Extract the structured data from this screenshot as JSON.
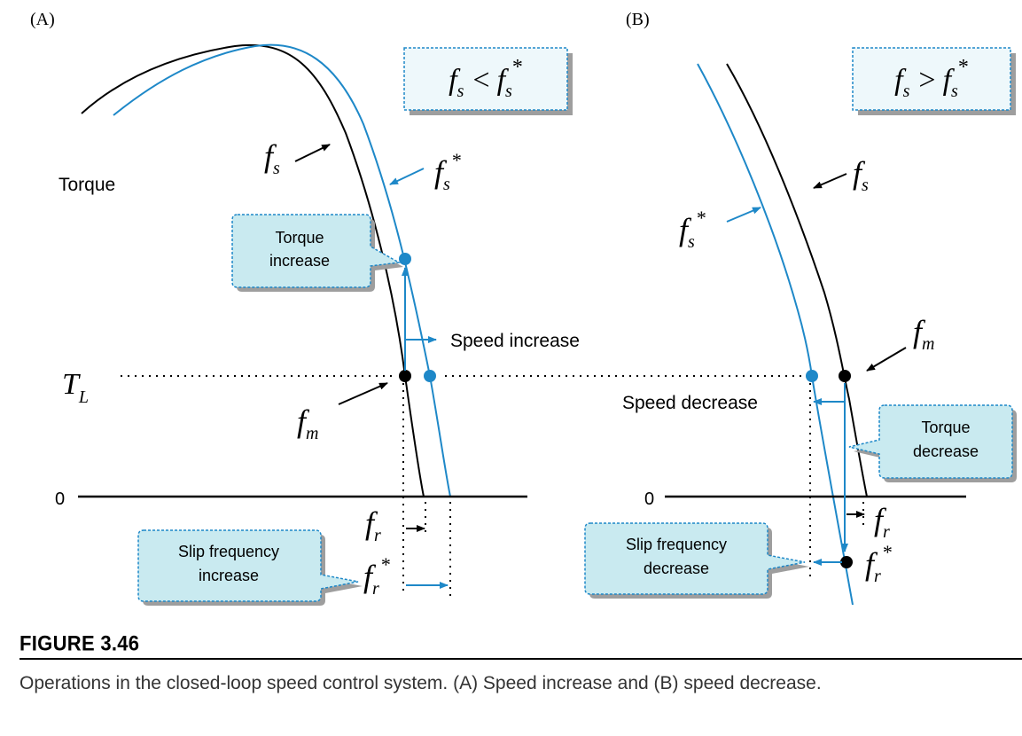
{
  "panels": {
    "a": {
      "label": "(A)",
      "box": {
        "f": "f",
        "sub": "s",
        "op": "<",
        "f2": "f",
        "sub2": "s",
        "sup2": "*"
      },
      "torque_label": "Torque",
      "tl": {
        "main": "T",
        "sub": "L"
      },
      "fs": {
        "main": "f",
        "sub": "s"
      },
      "fs_star": {
        "main": "f",
        "sub": "s",
        "sup": "*"
      },
      "fm": {
        "main": "f",
        "sub": "m"
      },
      "fr": {
        "main": "f",
        "sub": "r"
      },
      "fr_star": {
        "main": "f",
        "sub": "r",
        "sup": "*"
      },
      "zero": "0",
      "speed_label": "Speed increase",
      "torque_callout": [
        "Torque",
        "increase"
      ],
      "slip_callout": [
        "Slip frequency",
        "increase"
      ]
    },
    "b": {
      "label": "(B)",
      "box": {
        "f": "f",
        "sub": "s",
        "op": ">",
        "f2": "f",
        "sub2": "s",
        "sup2": "*"
      },
      "fs": {
        "main": "f",
        "sub": "s"
      },
      "fs_star": {
        "main": "f",
        "sub": "s",
        "sup": "*"
      },
      "fm": {
        "main": "f",
        "sub": "m"
      },
      "fr": {
        "main": "f",
        "sub": "r"
      },
      "fr_star": {
        "main": "f",
        "sub": "r",
        "sup": "*"
      },
      "zero": "0",
      "speed_label": "Speed decrease",
      "torque_callout": [
        "Torque",
        "decrease"
      ],
      "slip_callout": [
        "Slip frequency",
        "decrease"
      ]
    }
  },
  "figure": {
    "label": "FIGURE 3.46",
    "caption": "Operations in the closed-loop speed control system. (A) Speed increase and (B) speed decrease."
  },
  "colors": {
    "blue": "#1e88c8",
    "callout_fill": "#c9eaf0",
    "callout_stroke": "#1e88c8",
    "box_fill": "#eef8fb",
    "shadow": "#9e9e9e"
  }
}
